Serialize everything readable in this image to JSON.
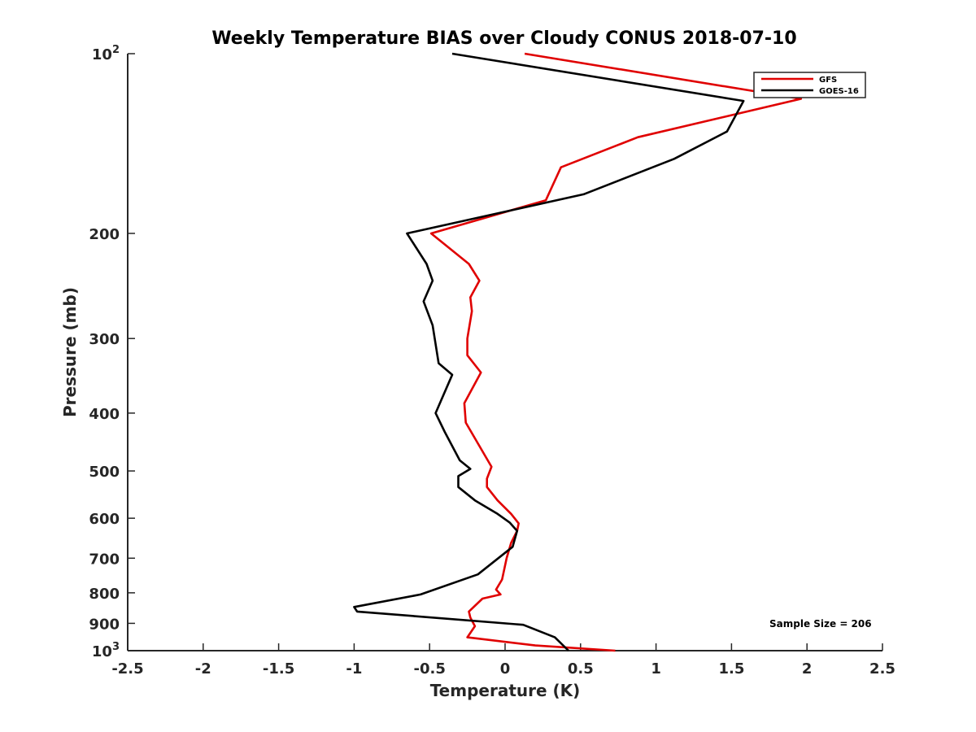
{
  "chart_data": {
    "type": "line",
    "title": "Weekly Temperature BIAS over Cloudy CONUS 2018-07-10",
    "xlabel": "Temperature (K)",
    "ylabel": "Pressure (mb)",
    "xlim": [
      -2.5,
      2.5
    ],
    "ylim": [
      100,
      1000
    ],
    "y_scale": "log",
    "y_reversed": true,
    "grid": false,
    "legend_position": "top-right",
    "x_ticks": [
      {
        "value": -2.5,
        "label": "-2.5"
      },
      {
        "value": -2,
        "label": "-2"
      },
      {
        "value": -1.5,
        "label": "-1.5"
      },
      {
        "value": -1,
        "label": "-1"
      },
      {
        "value": -0.5,
        "label": "-0.5"
      },
      {
        "value": 0,
        "label": "0"
      },
      {
        "value": 0.5,
        "label": "0.5"
      },
      {
        "value": 1,
        "label": "1"
      },
      {
        "value": 1.5,
        "label": "1.5"
      },
      {
        "value": 2,
        "label": "2"
      },
      {
        "value": 2.5,
        "label": "2.5"
      }
    ],
    "y_ticks": [
      {
        "value": 100,
        "label": "10",
        "sup": "2"
      },
      {
        "value": 200,
        "label": "200"
      },
      {
        "value": 300,
        "label": "300"
      },
      {
        "value": 400,
        "label": "400"
      },
      {
        "value": 500,
        "label": "500"
      },
      {
        "value": 600,
        "label": "600"
      },
      {
        "value": 700,
        "label": "700"
      },
      {
        "value": 800,
        "label": "800"
      },
      {
        "value": 900,
        "label": "900"
      },
      {
        "value": 1000,
        "label": "10",
        "sup": "3"
      }
    ],
    "series": [
      {
        "name": "GFS",
        "color": "#e00000",
        "points": [
          [
            0.13,
            100
          ],
          [
            1.96,
            119
          ],
          [
            0.88,
            138
          ],
          [
            0.37,
            155
          ],
          [
            0.27,
            176
          ],
          [
            -0.49,
            200
          ],
          [
            -0.24,
            225
          ],
          [
            -0.17,
            240
          ],
          [
            -0.23,
            256
          ],
          [
            -0.22,
            270
          ],
          [
            -0.25,
            300
          ],
          [
            -0.25,
            320
          ],
          [
            -0.16,
            342
          ],
          [
            -0.27,
            385
          ],
          [
            -0.26,
            415
          ],
          [
            -0.09,
            492
          ],
          [
            -0.12,
            515
          ],
          [
            -0.12,
            532
          ],
          [
            -0.05,
            560
          ],
          [
            0.04,
            590
          ],
          [
            0.09,
            612
          ],
          [
            0.08,
            630
          ],
          [
            0.04,
            660
          ],
          [
            0.01,
            700
          ],
          [
            -0.02,
            760
          ],
          [
            -0.06,
            790
          ],
          [
            -0.03,
            805
          ],
          [
            -0.15,
            818
          ],
          [
            -0.24,
            860
          ],
          [
            -0.23,
            880
          ],
          [
            -0.2,
            910
          ],
          [
            -0.25,
            950
          ],
          [
            0.2,
            980
          ],
          [
            0.73,
            1000
          ]
        ]
      },
      {
        "name": "GOES-16",
        "color": "#000000",
        "points": [
          [
            -0.35,
            100
          ],
          [
            1.58,
            120
          ],
          [
            1.47,
            135
          ],
          [
            1.12,
            150
          ],
          [
            0.52,
            172
          ],
          [
            -0.65,
            200
          ],
          [
            -0.52,
            225
          ],
          [
            -0.48,
            240
          ],
          [
            -0.54,
            260
          ],
          [
            -0.48,
            285
          ],
          [
            -0.44,
            330
          ],
          [
            -0.35,
            345
          ],
          [
            -0.46,
            400
          ],
          [
            -0.4,
            430
          ],
          [
            -0.3,
            480
          ],
          [
            -0.23,
            496
          ],
          [
            -0.31,
            510
          ],
          [
            -0.31,
            532
          ],
          [
            -0.2,
            560
          ],
          [
            -0.05,
            590
          ],
          [
            0.03,
            610
          ],
          [
            0.08,
            630
          ],
          [
            0.05,
            670
          ],
          [
            -0.18,
            745
          ],
          [
            -0.56,
            805
          ],
          [
            -1.0,
            845
          ],
          [
            -0.98,
            860
          ],
          [
            0.12,
            905
          ],
          [
            0.33,
            950
          ],
          [
            0.42,
            1000
          ]
        ]
      }
    ],
    "annotation": "Sample Size = 206"
  }
}
